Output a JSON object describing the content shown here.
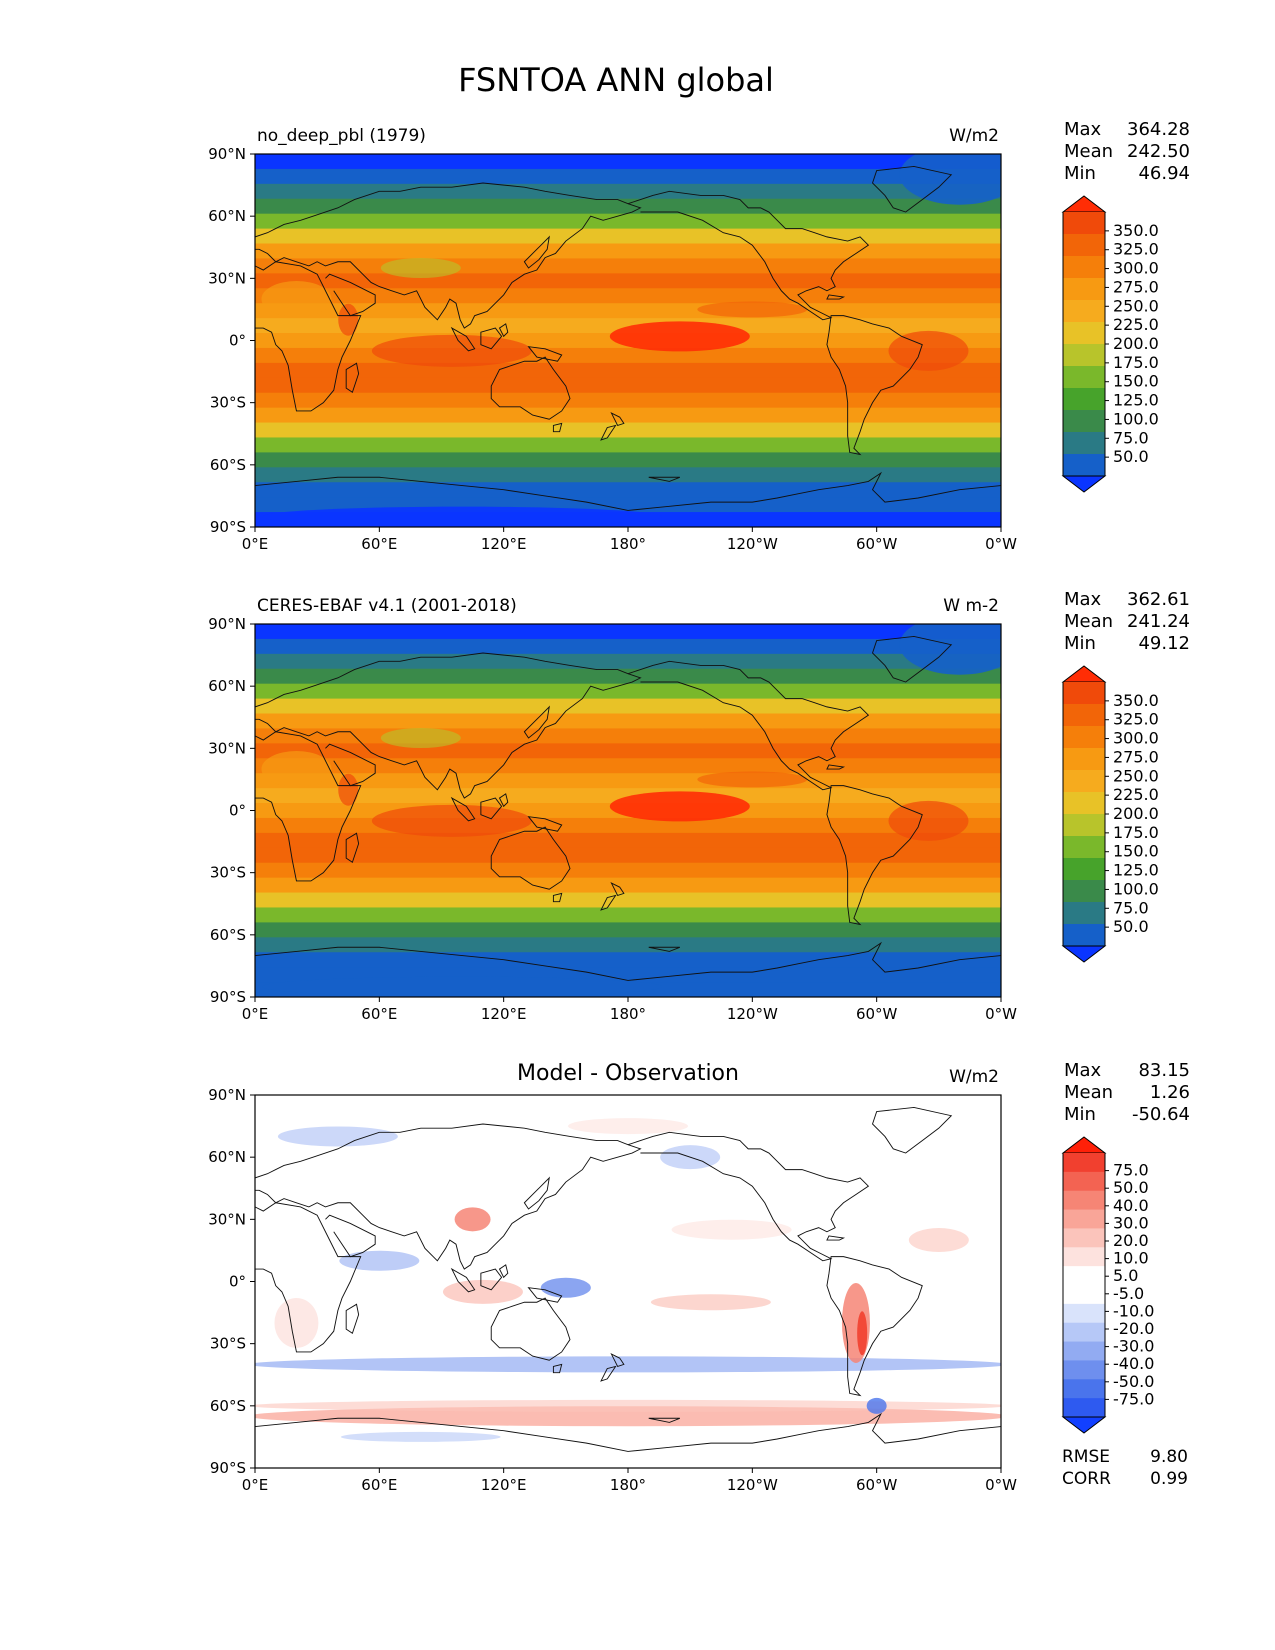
{
  "title": "FSNTOA ANN global",
  "x_ticks": [
    "0°E",
    "60°E",
    "120°E",
    "180°",
    "120°W",
    "60°W",
    "0°W"
  ],
  "y_ticks": [
    "90°N",
    "60°N",
    "30°N",
    "0°",
    "30°S",
    "60°S",
    "90°S"
  ],
  "stat_labels": {
    "max": "Max",
    "mean": "Mean",
    "min": "Min",
    "rmse": "RMSE",
    "corr": "CORR"
  },
  "colors": {
    "fill_seq": [
      "#0a35ff",
      "#1560c9",
      "#2a7a85",
      "#3a8a4a",
      "#47a32b",
      "#7ab82b",
      "#b8c42b",
      "#e8c227",
      "#f6ab1e",
      "#f79a12",
      "#f57f0a",
      "#f26508",
      "#f04a0a",
      "#ff2d05"
    ],
    "fill_div": [
      "#1240ff",
      "#2e5af0",
      "#4a74ec",
      "#6e8fee",
      "#92abf2",
      "#b6c8f7",
      "#d9e3fb",
      "#ffffff",
      "#ffffff",
      "#fde2de",
      "#fbc4bb",
      "#f9a598",
      "#f68575",
      "#f36352",
      "#f1402f",
      "#ff2008"
    ]
  },
  "chart_data": [
    {
      "type": "heatmap",
      "name": "model",
      "subtitle": "no_deep_pbl (1979)",
      "units": "W/m2",
      "stats": {
        "max": "364.28",
        "mean": "242.50",
        "min": "46.94"
      },
      "colorbar_levels": [
        "350.0",
        "325.0",
        "300.0",
        "275.0",
        "250.0",
        "225.0",
        "200.0",
        "175.0",
        "150.0",
        "125.0",
        "100.0",
        "75.0",
        "50.0"
      ],
      "lat_range": [
        -90,
        90
      ],
      "lon_range": [
        0,
        360
      ]
    },
    {
      "type": "heatmap",
      "name": "observation",
      "subtitle": "CERES-EBAF v4.1 (2001-2018)",
      "units": "W m-2",
      "stats": {
        "max": "362.61",
        "mean": "241.24",
        "min": "49.12"
      },
      "colorbar_levels": [
        "350.0",
        "325.0",
        "300.0",
        "275.0",
        "250.0",
        "225.0",
        "200.0",
        "175.0",
        "150.0",
        "125.0",
        "100.0",
        "75.0",
        "50.0"
      ],
      "lat_range": [
        -90,
        90
      ],
      "lon_range": [
        0,
        360
      ]
    },
    {
      "type": "heatmap",
      "name": "difference",
      "title": "Model - Observation",
      "units": "W/m2",
      "stats": {
        "max": "83.15",
        "mean": "1.26",
        "min": "-50.64"
      },
      "rmse": "9.80",
      "corr": "0.99",
      "colorbar_levels": [
        "75.0",
        "50.0",
        "40.0",
        "30.0",
        "20.0",
        "10.0",
        "5.0",
        "-5.0",
        "-10.0",
        "-20.0",
        "-30.0",
        "-40.0",
        "-50.0",
        "-75.0"
      ],
      "lat_range": [
        -90,
        90
      ],
      "lon_range": [
        0,
        360
      ]
    }
  ]
}
